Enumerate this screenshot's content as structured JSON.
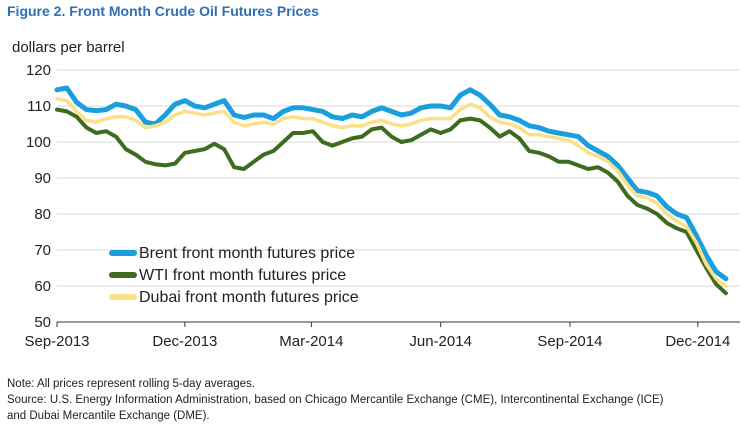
{
  "figure_title": "Figure 2. Front Month Crude Oil Futures Prices",
  "note": "Note: All prices represent rolling 5-day averages.",
  "source_line1": "Source:  U.S. Energy Information Administration, based on Chicago Mercantile Exchange (CME), Intercontinental Exchange (ICE)",
  "source_line2": "and Dubai Mercantile Exchange (DME).",
  "chart_data": {
    "type": "line",
    "title": "Figure 2. Front Month Crude Oil Futures Prices",
    "ylabel": "dollars per barrel",
    "xlabel": "",
    "ylim": [
      50,
      120
    ],
    "yticks": [
      50,
      60,
      70,
      80,
      90,
      100,
      110,
      120
    ],
    "xlim": [
      "2013-09-01",
      "2014-12-31"
    ],
    "xticks": [
      {
        "date": "2013-09-01",
        "label": "Sep-2013"
      },
      {
        "date": "2013-12-01",
        "label": "Dec-2013"
      },
      {
        "date": "2014-03-01",
        "label": "Mar-2014"
      },
      {
        "date": "2014-06-01",
        "label": "Jun-2014"
      },
      {
        "date": "2014-09-01",
        "label": "Sep-2014"
      },
      {
        "date": "2014-12-01",
        "label": "Dec-2014"
      }
    ],
    "grid": true,
    "legend": "lower-left",
    "series": [
      {
        "name": "Brent front month futures price",
        "color": "#1a9fdc",
        "points": [
          [
            "2013-09-01",
            114.5
          ],
          [
            "2013-09-08",
            115
          ],
          [
            "2013-09-15",
            111
          ],
          [
            "2013-09-22",
            109
          ],
          [
            "2013-09-29",
            108.7
          ],
          [
            "2013-10-06",
            109
          ],
          [
            "2013-10-13",
            110.5
          ],
          [
            "2013-10-20",
            110
          ],
          [
            "2013-10-27",
            109
          ],
          [
            "2013-11-03",
            105.5
          ],
          [
            "2013-11-10",
            105
          ],
          [
            "2013-11-17",
            107.5
          ],
          [
            "2013-11-24",
            110.5
          ],
          [
            "2013-12-01",
            111.5
          ],
          [
            "2013-12-08",
            110
          ],
          [
            "2013-12-15",
            109.5
          ],
          [
            "2013-12-22",
            110.5
          ],
          [
            "2013-12-29",
            111.5
          ],
          [
            "2014-01-05",
            107.5
          ],
          [
            "2014-01-12",
            106.8
          ],
          [
            "2014-01-19",
            107.5
          ],
          [
            "2014-01-26",
            107.5
          ],
          [
            "2014-02-02",
            106.5
          ],
          [
            "2014-02-09",
            108.5
          ],
          [
            "2014-02-16",
            109.5
          ],
          [
            "2014-02-23",
            109.5
          ],
          [
            "2014-03-02",
            109
          ],
          [
            "2014-03-09",
            108.5
          ],
          [
            "2014-03-16",
            107
          ],
          [
            "2014-03-23",
            106.5
          ],
          [
            "2014-03-30",
            107.5
          ],
          [
            "2014-04-06",
            107
          ],
          [
            "2014-04-13",
            108.5
          ],
          [
            "2014-04-20",
            109.5
          ],
          [
            "2014-04-27",
            108.5
          ],
          [
            "2014-05-04",
            107.5
          ],
          [
            "2014-05-11",
            108
          ],
          [
            "2014-05-18",
            109.5
          ],
          [
            "2014-05-25",
            110
          ],
          [
            "2014-06-01",
            110
          ],
          [
            "2014-06-08",
            109.5
          ],
          [
            "2014-06-15",
            113
          ],
          [
            "2014-06-22",
            114.5
          ],
          [
            "2014-06-29",
            113
          ],
          [
            "2014-07-06",
            110.5
          ],
          [
            "2014-07-13",
            107.5
          ],
          [
            "2014-07-20",
            107
          ],
          [
            "2014-07-27",
            106
          ],
          [
            "2014-08-03",
            104.5
          ],
          [
            "2014-08-10",
            104
          ],
          [
            "2014-08-17",
            103
          ],
          [
            "2014-08-24",
            102.5
          ],
          [
            "2014-08-31",
            102
          ],
          [
            "2014-09-07",
            101.5
          ],
          [
            "2014-09-14",
            99
          ],
          [
            "2014-09-21",
            97.5
          ],
          [
            "2014-09-28",
            96
          ],
          [
            "2014-10-05",
            93.5
          ],
          [
            "2014-10-12",
            90
          ],
          [
            "2014-10-19",
            86.5
          ],
          [
            "2014-10-26",
            86
          ],
          [
            "2014-11-02",
            85
          ],
          [
            "2014-11-09",
            82
          ],
          [
            "2014-11-16",
            80
          ],
          [
            "2014-11-23",
            79
          ],
          [
            "2014-11-30",
            74
          ],
          [
            "2014-12-07",
            68.5
          ],
          [
            "2014-12-14",
            64
          ],
          [
            "2014-12-21",
            62
          ]
        ]
      },
      {
        "name": "WTI front month futures price",
        "color": "#3f6b1f",
        "points": [
          [
            "2013-09-01",
            109
          ],
          [
            "2013-09-08",
            108.5
          ],
          [
            "2013-09-15",
            107
          ],
          [
            "2013-09-22",
            104
          ],
          [
            "2013-09-29",
            102.5
          ],
          [
            "2013-10-06",
            103
          ],
          [
            "2013-10-13",
            101.5
          ],
          [
            "2013-10-20",
            98
          ],
          [
            "2013-10-27",
            96.5
          ],
          [
            "2013-11-03",
            94.5
          ],
          [
            "2013-11-10",
            93.8
          ],
          [
            "2013-11-17",
            93.5
          ],
          [
            "2013-11-24",
            94
          ],
          [
            "2013-12-01",
            97
          ],
          [
            "2013-12-08",
            97.5
          ],
          [
            "2013-12-15",
            98
          ],
          [
            "2013-12-22",
            99.5
          ],
          [
            "2013-12-29",
            98
          ],
          [
            "2014-01-05",
            93
          ],
          [
            "2014-01-12",
            92.5
          ],
          [
            "2014-01-19",
            94.5
          ],
          [
            "2014-01-26",
            96.5
          ],
          [
            "2014-02-02",
            97.5
          ],
          [
            "2014-02-09",
            100
          ],
          [
            "2014-02-16",
            102.5
          ],
          [
            "2014-02-23",
            102.5
          ],
          [
            "2014-03-02",
            103
          ],
          [
            "2014-03-09",
            100
          ],
          [
            "2014-03-16",
            99
          ],
          [
            "2014-03-23",
            100
          ],
          [
            "2014-03-30",
            101
          ],
          [
            "2014-04-06",
            101.5
          ],
          [
            "2014-04-13",
            103.5
          ],
          [
            "2014-04-20",
            104
          ],
          [
            "2014-04-27",
            101.5
          ],
          [
            "2014-05-04",
            100
          ],
          [
            "2014-05-11",
            100.5
          ],
          [
            "2014-05-18",
            102
          ],
          [
            "2014-05-25",
            103.5
          ],
          [
            "2014-06-01",
            102.5
          ],
          [
            "2014-06-08",
            103.5
          ],
          [
            "2014-06-15",
            106
          ],
          [
            "2014-06-22",
            106.5
          ],
          [
            "2014-06-29",
            106
          ],
          [
            "2014-07-06",
            104
          ],
          [
            "2014-07-13",
            101.5
          ],
          [
            "2014-07-20",
            103
          ],
          [
            "2014-07-27",
            101
          ],
          [
            "2014-08-03",
            97.5
          ],
          [
            "2014-08-10",
            97
          ],
          [
            "2014-08-17",
            96
          ],
          [
            "2014-08-24",
            94.5
          ],
          [
            "2014-08-31",
            94.5
          ],
          [
            "2014-09-07",
            93.5
          ],
          [
            "2014-09-14",
            92.5
          ],
          [
            "2014-09-21",
            93
          ],
          [
            "2014-09-28",
            91.5
          ],
          [
            "2014-10-05",
            89
          ],
          [
            "2014-10-12",
            85
          ],
          [
            "2014-10-19",
            82.5
          ],
          [
            "2014-10-26",
            81.5
          ],
          [
            "2014-11-02",
            80
          ],
          [
            "2014-11-09",
            77.5
          ],
          [
            "2014-11-16",
            76
          ],
          [
            "2014-11-23",
            75
          ],
          [
            "2014-11-30",
            70
          ],
          [
            "2014-12-07",
            65
          ],
          [
            "2014-12-14",
            60.5
          ],
          [
            "2014-12-21",
            58
          ]
        ]
      },
      {
        "name": "Dubai front month futures price",
        "color": "#fbe08a",
        "points": [
          [
            "2013-09-01",
            112
          ],
          [
            "2013-09-08",
            111.5
          ],
          [
            "2013-09-15",
            108.5
          ],
          [
            "2013-09-22",
            106
          ],
          [
            "2013-09-29",
            105.5
          ],
          [
            "2013-10-06",
            106.5
          ],
          [
            "2013-10-13",
            107
          ],
          [
            "2013-10-20",
            107
          ],
          [
            "2013-10-27",
            106
          ],
          [
            "2013-11-03",
            104
          ],
          [
            "2013-11-10",
            104.5
          ],
          [
            "2013-11-17",
            105.5
          ],
          [
            "2013-11-24",
            107.5
          ],
          [
            "2013-12-01",
            108.5
          ],
          [
            "2013-12-08",
            108
          ],
          [
            "2013-12-15",
            107.5
          ],
          [
            "2013-12-22",
            108
          ],
          [
            "2013-12-29",
            108.5
          ],
          [
            "2014-01-05",
            105.5
          ],
          [
            "2014-01-12",
            104.5
          ],
          [
            "2014-01-19",
            105
          ],
          [
            "2014-01-26",
            105.5
          ],
          [
            "2014-02-02",
            105
          ],
          [
            "2014-02-09",
            106.5
          ],
          [
            "2014-02-16",
            107
          ],
          [
            "2014-02-23",
            106.5
          ],
          [
            "2014-03-02",
            106.5
          ],
          [
            "2014-03-09",
            105.5
          ],
          [
            "2014-03-16",
            104.5
          ],
          [
            "2014-03-23",
            104
          ],
          [
            "2014-03-30",
            104.5
          ],
          [
            "2014-04-06",
            104.5
          ],
          [
            "2014-04-13",
            105.5
          ],
          [
            "2014-04-20",
            106
          ],
          [
            "2014-04-27",
            105
          ],
          [
            "2014-05-04",
            104.5
          ],
          [
            "2014-05-11",
            105
          ],
          [
            "2014-05-18",
            106
          ],
          [
            "2014-05-25",
            106.5
          ],
          [
            "2014-06-01",
            106.5
          ],
          [
            "2014-06-08",
            106.5
          ],
          [
            "2014-06-15",
            109
          ],
          [
            "2014-06-22",
            110.5
          ],
          [
            "2014-06-29",
            109.5
          ],
          [
            "2014-07-06",
            107
          ],
          [
            "2014-07-13",
            105.5
          ],
          [
            "2014-07-20",
            105
          ],
          [
            "2014-07-27",
            104
          ],
          [
            "2014-08-03",
            102
          ],
          [
            "2014-08-10",
            102
          ],
          [
            "2014-08-17",
            101.5
          ],
          [
            "2014-08-24",
            101
          ],
          [
            "2014-08-31",
            100.5
          ],
          [
            "2014-09-07",
            99
          ],
          [
            "2014-09-14",
            97
          ],
          [
            "2014-09-21",
            96
          ],
          [
            "2014-09-28",
            94.5
          ],
          [
            "2014-10-05",
            92
          ],
          [
            "2014-10-12",
            88
          ],
          [
            "2014-10-19",
            85
          ],
          [
            "2014-10-26",
            84.5
          ],
          [
            "2014-11-02",
            83
          ],
          [
            "2014-11-09",
            80
          ],
          [
            "2014-11-16",
            78
          ],
          [
            "2014-11-23",
            76.5
          ],
          [
            "2014-11-30",
            72
          ],
          [
            "2014-12-07",
            66
          ],
          [
            "2014-12-14",
            62
          ],
          [
            "2014-12-21",
            60
          ]
        ]
      }
    ]
  }
}
